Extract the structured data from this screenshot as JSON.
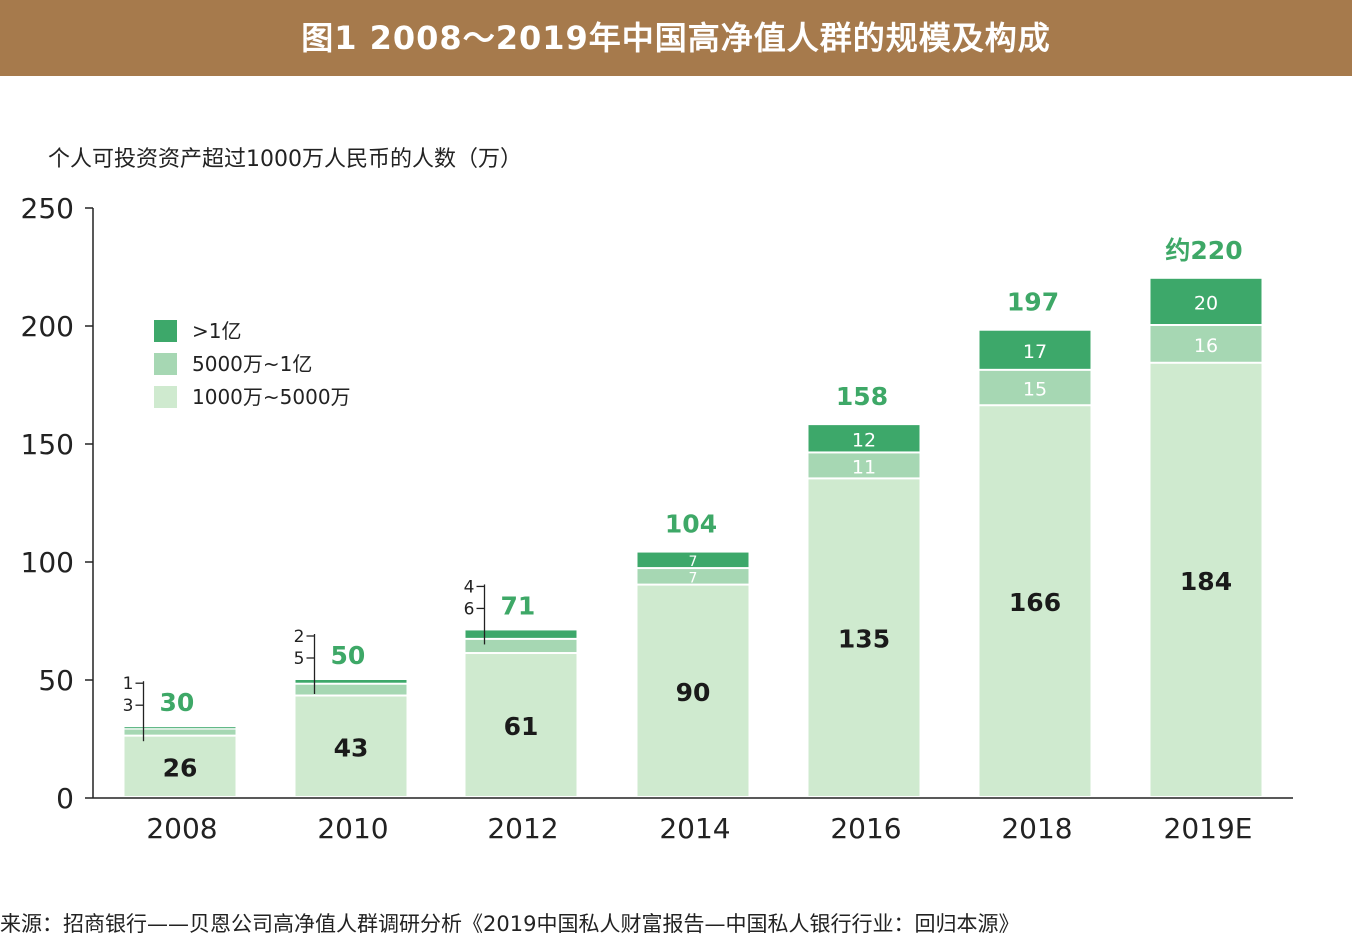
{
  "title": "图1 2008～2019年中国高净值人群的规模及构成",
  "source": "来源：招商银行——贝恩公司高净值人群调研分析《2019中国私人财富报告—中国私人银行行业：回归本源》",
  "colors": {
    "brand": "#a67a4c",
    "dark": "#3da86a",
    "mid": "#a6d7b3",
    "light": "#cfeacf",
    "total": "#3ea867",
    "axis": "#222222"
  },
  "chart_data": {
    "type": "bar",
    "stacked": true,
    "ylabel": "个人可投资资产超过1000万人民币的人数（万）",
    "ylim": [
      0,
      250
    ],
    "yticks": [
      0,
      50,
      100,
      150,
      200,
      250
    ],
    "categories": [
      "2008",
      "2010",
      "2012",
      "2014",
      "2016",
      "2018",
      "2019E"
    ],
    "series": [
      {
        "name": "1000万~5000万",
        "color": "#cfeacf",
        "values": [
          26,
          43,
          61,
          90,
          135,
          166,
          184
        ]
      },
      {
        "name": "5000万~1亿",
        "color": "#a6d7b3",
        "values": [
          3,
          5,
          6,
          7,
          11,
          15,
          16
        ]
      },
      {
        "name": ">1亿",
        "color": "#3da86a",
        "values": [
          1,
          2,
          4,
          7,
          12,
          17,
          20
        ]
      }
    ],
    "totals": [
      "30",
      "50",
      "71",
      "104",
      "158",
      "197",
      "约220"
    ],
    "legend_position": "top-left"
  }
}
